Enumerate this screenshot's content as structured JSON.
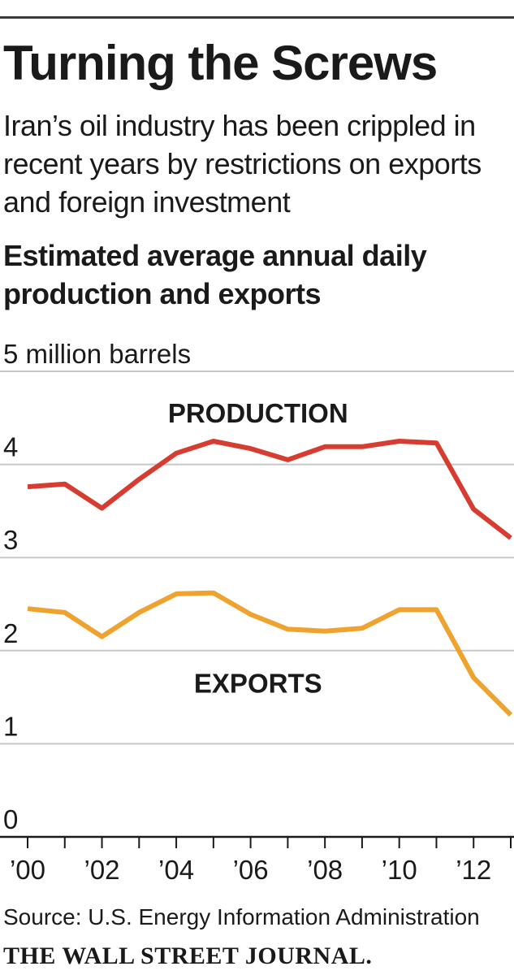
{
  "title": "Turning the Screws",
  "subtitle": "Iran’s oil industry has been crippled in recent years by restrictions on exports and foreign investment",
  "chart_heading": "Estimated average annual daily production and exports",
  "source": "Source: U.S. Energy Information Administration",
  "publisher": "THE WALL STREET JOURNAL.",
  "chart_data": {
    "type": "line",
    "title": "Estimated average annual daily production and exports",
    "ylabel": "5 million barrels",
    "xlabel": "",
    "ylim": [
      0,
      5
    ],
    "xlim": [
      2000,
      2013
    ],
    "grid": true,
    "y_tick_labels": [
      {
        "value": 5,
        "label": "5 million barrels"
      },
      {
        "value": 4,
        "label": "4"
      },
      {
        "value": 3,
        "label": "3"
      },
      {
        "value": 2,
        "label": "2"
      },
      {
        "value": 1,
        "label": "1"
      },
      {
        "value": 0,
        "label": "0"
      }
    ],
    "x_tick_labels": [
      {
        "value": 2000,
        "label": "’00"
      },
      {
        "value": 2002,
        "label": "’02"
      },
      {
        "value": 2004,
        "label": "’04"
      },
      {
        "value": 2006,
        "label": "’06"
      },
      {
        "value": 2008,
        "label": "’08"
      },
      {
        "value": 2010,
        "label": "’10"
      },
      {
        "value": 2012,
        "label": "’12"
      }
    ],
    "x": [
      2000,
      2001,
      2002,
      2003,
      2004,
      2005,
      2006,
      2007,
      2008,
      2009,
      2010,
      2011,
      2012,
      2013
    ],
    "series": [
      {
        "name": "PRODUCTION",
        "color": "#d63c2f",
        "values": [
          3.76,
          3.79,
          3.53,
          3.84,
          4.12,
          4.25,
          4.17,
          4.05,
          4.19,
          4.19,
          4.25,
          4.23,
          3.52,
          3.21
        ]
      },
      {
        "name": "EXPORTS",
        "color": "#f0a22e",
        "values": [
          2.45,
          2.41,
          2.15,
          2.41,
          2.61,
          2.62,
          2.39,
          2.23,
          2.21,
          2.24,
          2.44,
          2.44,
          1.71,
          1.31
        ]
      }
    ],
    "annotations": [
      {
        "text": "PRODUCTION",
        "series": "PRODUCTION",
        "x": 2006.2,
        "y": 4.45
      },
      {
        "text": "EXPORTS",
        "series": "EXPORTS",
        "x": 2006.2,
        "y": 1.55
      }
    ]
  }
}
